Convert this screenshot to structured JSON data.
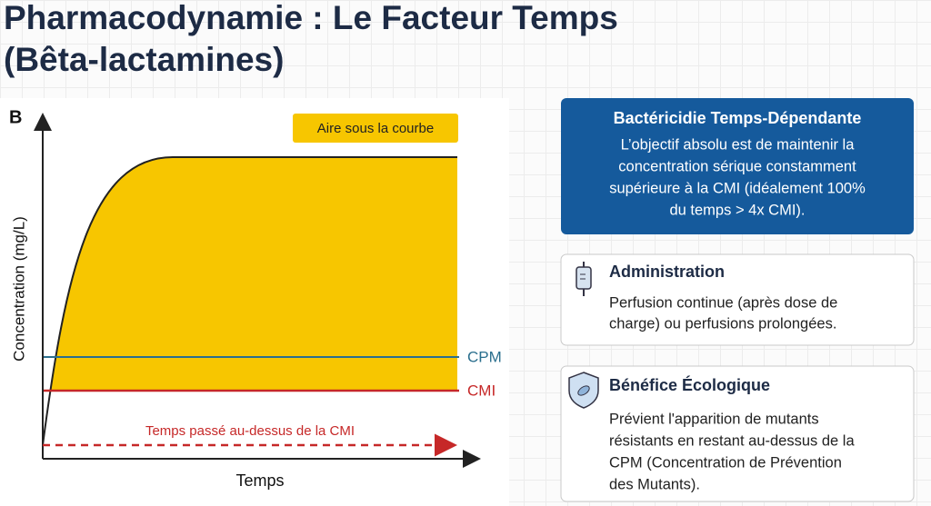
{
  "header": {
    "title_line1": "Pharmacodynamie : Le Facteur Temps",
    "title_line2": "(Bêta-lactamines)"
  },
  "diagram": {
    "panel_label": "B",
    "y_axis_label": "Concentration (mg/L)",
    "x_axis_label": "Temps",
    "legend": "Aire sous la courbe",
    "cpm_label": "CPM",
    "cmi_label": "CMI",
    "arrow_label": "Temps passé au-dessus de la CMI"
  },
  "cards": [
    {
      "title": "Bactéricidie Temps-Dépendante",
      "lines": [
        "L’objectif absolu est de maintenir la",
        "concentration sérique constamment",
        "supérieure à la CMI (idéalement 100%",
        "du temps > 4x CMI)."
      ]
    },
    {
      "title": "Administration",
      "lines": [
        "Perfusion continue (après dose de",
        "charge) ou perfusions prolongées."
      ]
    },
    {
      "title": "Bénéfice Écologique",
      "lines": [
        "Prévient l'apparition de mutants",
        "résistants en restant au-dessus de la",
        "CPM (Concentration de Prévention",
        "des Mutants)."
      ]
    }
  ]
}
